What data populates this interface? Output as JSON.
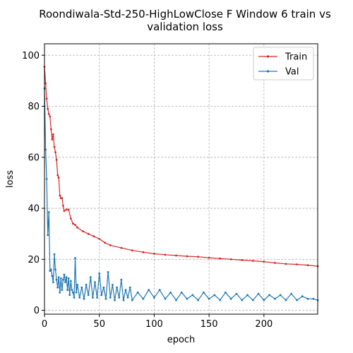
{
  "chart_data": {
    "type": "line",
    "title_lines": [
      "Roondiwala-Std-250-HighLowClose F Window 6 train vs",
      "validation loss"
    ],
    "xlabel": "epoch",
    "ylabel": "loss",
    "xlim": [
      0,
      249
    ],
    "ylim": [
      -1.5,
      104.5
    ],
    "xticks": [
      0,
      50,
      100,
      150,
      200
    ],
    "yticks": [
      0,
      20,
      40,
      60,
      80,
      100
    ],
    "grid": true,
    "legend_position": "top-right",
    "series": [
      {
        "name": "Train",
        "color": "#d62728",
        "keypoints": [
          [
            0,
            95.5
          ],
          [
            1,
            89
          ],
          [
            2,
            83
          ],
          [
            3,
            79
          ],
          [
            4,
            77
          ],
          [
            5,
            76
          ],
          [
            6,
            71
          ],
          [
            7,
            67
          ],
          [
            8,
            69
          ],
          [
            9,
            64
          ],
          [
            10,
            62
          ],
          [
            11,
            59
          ],
          [
            12,
            53
          ],
          [
            13,
            52
          ],
          [
            14,
            45
          ],
          [
            15,
            44
          ],
          [
            16,
            44
          ],
          [
            17,
            41
          ],
          [
            18,
            39
          ],
          [
            20,
            39.5
          ],
          [
            22,
            39.5
          ],
          [
            24,
            36
          ],
          [
            26,
            34
          ],
          [
            28,
            33.5
          ],
          [
            30,
            32.5
          ],
          [
            35,
            31
          ],
          [
            40,
            30
          ],
          [
            45,
            29
          ],
          [
            50,
            28
          ],
          [
            55,
            26.5
          ],
          [
            60,
            25.5
          ],
          [
            70,
            24.5
          ],
          [
            80,
            23.5
          ],
          [
            90,
            22.8
          ],
          [
            100,
            22.2
          ],
          [
            110,
            21.8
          ],
          [
            120,
            21.5
          ],
          [
            130,
            21.2
          ],
          [
            140,
            21
          ],
          [
            150,
            20.6
          ],
          [
            160,
            20.3
          ],
          [
            170,
            20
          ],
          [
            180,
            19.7
          ],
          [
            190,
            19.4
          ],
          [
            200,
            19.1
          ],
          [
            210,
            18.6
          ],
          [
            220,
            18.2
          ],
          [
            230,
            18
          ],
          [
            240,
            17.7
          ],
          [
            249,
            17.3
          ]
        ]
      },
      {
        "name": "Val",
        "color": "#1f77b4",
        "keypoints": [
          [
            0,
            87
          ],
          [
            1,
            63
          ],
          [
            2,
            51.5
          ],
          [
            3,
            29.5
          ],
          [
            4,
            38.5
          ],
          [
            5,
            15.5
          ],
          [
            6,
            16
          ],
          [
            7,
            13.5
          ],
          [
            8,
            11
          ],
          [
            9,
            22
          ],
          [
            10,
            16
          ],
          [
            11,
            12
          ],
          [
            12,
            9
          ],
          [
            13,
            13
          ],
          [
            14,
            7
          ],
          [
            15,
            12.5
          ],
          [
            16,
            8
          ],
          [
            17,
            12
          ],
          [
            18,
            14
          ],
          [
            19,
            11
          ],
          [
            20,
            13
          ],
          [
            21,
            8
          ],
          [
            22,
            12.5
          ],
          [
            23,
            6
          ],
          [
            24,
            11.5
          ],
          [
            25,
            8
          ],
          [
            26,
            7
          ],
          [
            27,
            5
          ],
          [
            28,
            20.5
          ],
          [
            29,
            7
          ],
          [
            30,
            10
          ],
          [
            32,
            5
          ],
          [
            34,
            9
          ],
          [
            36,
            4.5
          ],
          [
            38,
            10
          ],
          [
            40,
            6
          ],
          [
            42,
            13
          ],
          [
            44,
            5
          ],
          [
            46,
            11
          ],
          [
            48,
            5
          ],
          [
            50,
            14.5
          ],
          [
            52,
            6
          ],
          [
            54,
            9
          ],
          [
            56,
            4.5
          ],
          [
            58,
            15
          ],
          [
            60,
            5
          ],
          [
            62,
            10
          ],
          [
            64,
            4
          ],
          [
            66,
            9
          ],
          [
            68,
            5
          ],
          [
            70,
            12
          ],
          [
            72,
            4
          ],
          [
            74,
            8
          ],
          [
            76,
            5
          ],
          [
            78,
            9
          ],
          [
            80,
            4
          ],
          [
            85,
            7
          ],
          [
            90,
            4.5
          ],
          [
            95,
            8
          ],
          [
            100,
            5
          ],
          [
            105,
            8
          ],
          [
            110,
            4.5
          ],
          [
            115,
            7
          ],
          [
            120,
            4
          ],
          [
            125,
            7
          ],
          [
            130,
            4.5
          ],
          [
            135,
            6
          ],
          [
            140,
            4
          ],
          [
            145,
            7
          ],
          [
            150,
            4.5
          ],
          [
            155,
            6
          ],
          [
            160,
            4
          ],
          [
            165,
            7
          ],
          [
            170,
            4.5
          ],
          [
            175,
            6.5
          ],
          [
            180,
            4
          ],
          [
            185,
            6
          ],
          [
            190,
            4
          ],
          [
            195,
            6.5
          ],
          [
            200,
            4
          ],
          [
            205,
            6
          ],
          [
            210,
            4.5
          ],
          [
            215,
            6
          ],
          [
            220,
            4
          ],
          [
            225,
            6.5
          ],
          [
            230,
            4
          ],
          [
            235,
            5.5
          ],
          [
            240,
            4.5
          ],
          [
            245,
            4.5
          ],
          [
            249,
            4
          ]
        ]
      }
    ]
  }
}
